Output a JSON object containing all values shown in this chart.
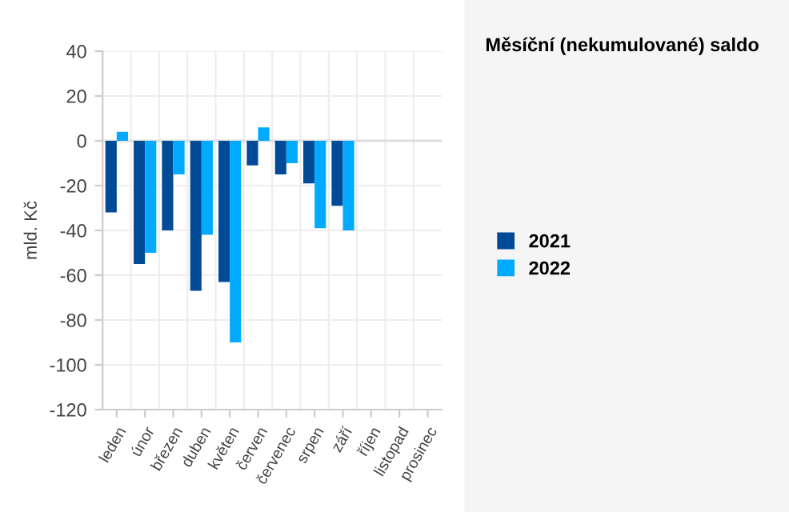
{
  "chart_data": {
    "type": "bar",
    "title": "Měsíční (nekumulované) saldo",
    "ylabel": "mld. Kč",
    "categories": [
      "leden",
      "únor",
      "březen",
      "duben",
      "květen",
      "červen",
      "červenec",
      "srpen",
      "září",
      "říjen",
      "listopad",
      "prosinec"
    ],
    "series": [
      {
        "name": "2021",
        "color": "#004a97",
        "values": [
          -32,
          -55,
          -40,
          -67,
          -63,
          -11,
          -15,
          -19,
          -29,
          null,
          null,
          null
        ]
      },
      {
        "name": "2022",
        "color": "#00aaff",
        "values": [
          4,
          -50,
          -15,
          -42,
          -90,
          6,
          -10,
          -39,
          -40,
          null,
          null,
          null
        ]
      }
    ],
    "ylim": [
      -120,
      40
    ],
    "yticks": [
      -120,
      -100,
      -80,
      -60,
      -40,
      -20,
      0,
      20,
      40
    ],
    "grid": true,
    "legend": "right"
  }
}
